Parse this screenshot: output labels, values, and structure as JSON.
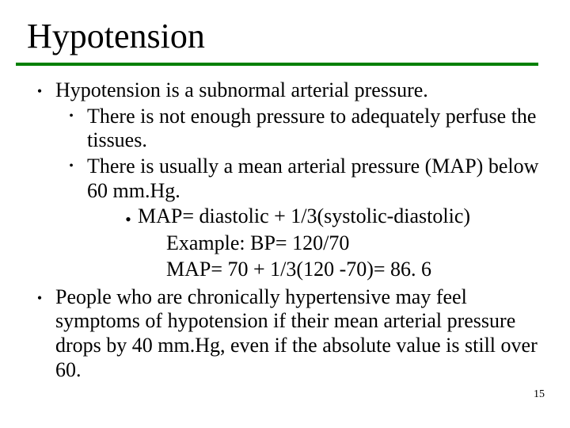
{
  "title": "Hypotension",
  "rule_color": "#008000",
  "page_number": "15",
  "text_color": "#000000",
  "background_color": "#ffffff",
  "font_family": "Times New Roman",
  "title_fontsize": 44,
  "body_fontsize": 26,
  "b1_main": "Hypotension is a subnormal arterial pressure.",
  "b1_s1": "There is not enough pressure to adequately perfuse the tissues.",
  "b1_s2": "There is usually a mean arterial pressure (MAP) below 60 mm.Hg.",
  "b1_s2_f": "MAP= diastolic + 1/3(systolic-diastolic)",
  "b1_s2_ex1": "Example: BP= 120/70",
  "b1_s2_ex2": "MAP= 70 + 1/3(120 -70)= 86. 6",
  "b2_main": "People who are chronically hypertensive may feel symptoms of hypotension if their mean arterial pressure drops by 40 mm.Hg, even if the absolute value is still over 60."
}
